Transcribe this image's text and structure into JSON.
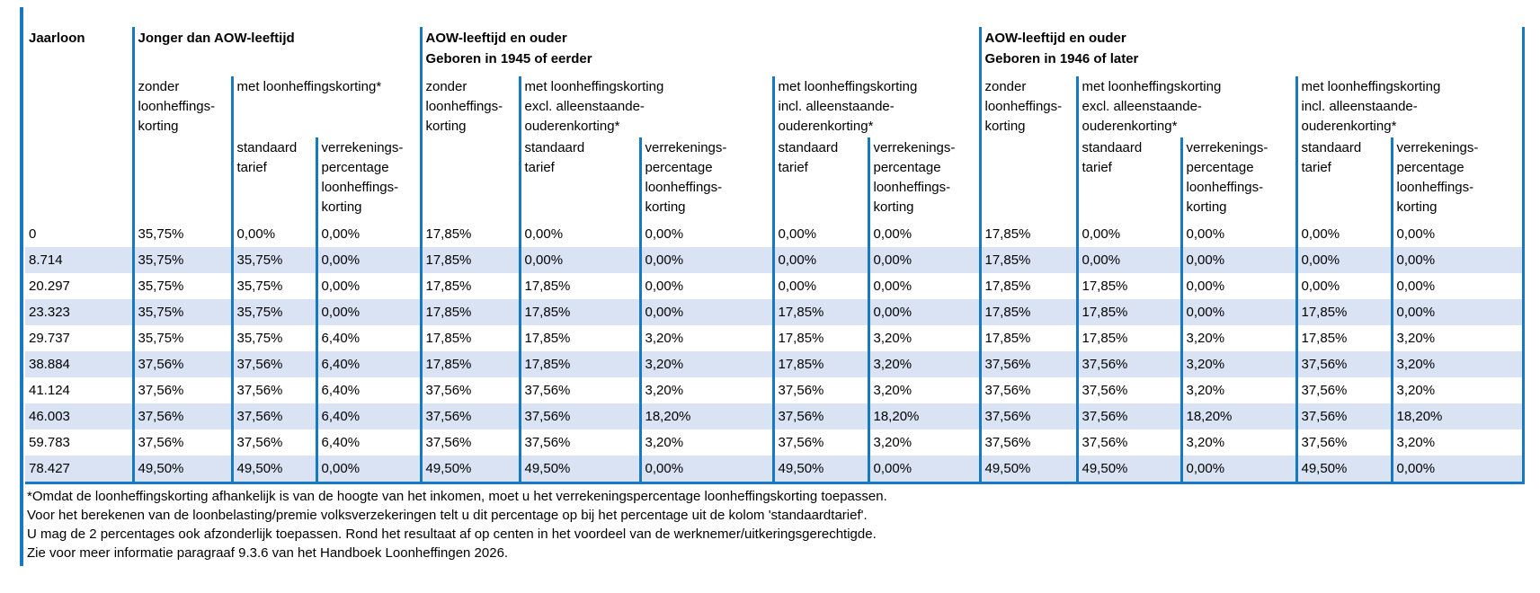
{
  "colors": {
    "border_blue": "#1779c2",
    "row_shade": "#dae3f3",
    "page_background": "#ffffff",
    "text": "#000000"
  },
  "table": {
    "col1_header": "Jaarloon",
    "groups": [
      {
        "title": "Jonger dan AOW-leeftijd"
      },
      {
        "title": "AOW-leeftijd en ouder\nGeboren in 1945 of eerder"
      },
      {
        "title": "AOW-leeftijd en ouder\nGeboren in 1946 of later"
      }
    ],
    "labels": {
      "zonder": "zonder\nloonheffings-\nkorting",
      "met": "met loonheffingskorting*",
      "met_excl": "met loonheffingskorting\nexcl. alleenstaande-\nouderenkorting*",
      "met_incl": "met loonheffingskorting\nincl. alleenstaande-\nouderenkorting*",
      "standaard": "standaard\ntarief",
      "verrekening": "verrekenings-\npercentage\nloonheffings-\nkorting"
    },
    "rows": [
      [
        "0",
        "35,75%",
        "0,00%",
        "0,00%",
        "17,85%",
        "0,00%",
        "0,00%",
        "0,00%",
        "0,00%",
        "17,85%",
        "0,00%",
        "0,00%",
        "0,00%",
        "0,00%"
      ],
      [
        "8.714",
        "35,75%",
        "35,75%",
        "0,00%",
        "17,85%",
        "0,00%",
        "0,00%",
        "0,00%",
        "0,00%",
        "17,85%",
        "0,00%",
        "0,00%",
        "0,00%",
        "0,00%"
      ],
      [
        "20.297",
        "35,75%",
        "35,75%",
        "0,00%",
        "17,85%",
        "17,85%",
        "0,00%",
        "0,00%",
        "0,00%",
        "17,85%",
        "17,85%",
        "0,00%",
        "0,00%",
        "0,00%"
      ],
      [
        "23.323",
        "35,75%",
        "35,75%",
        "0,00%",
        "17,85%",
        "17,85%",
        "0,00%",
        "17,85%",
        "0,00%",
        "17,85%",
        "17,85%",
        "0,00%",
        "17,85%",
        "0,00%"
      ],
      [
        "29.737",
        "35,75%",
        "35,75%",
        "6,40%",
        "17,85%",
        "17,85%",
        "3,20%",
        "17,85%",
        "3,20%",
        "17,85%",
        "17,85%",
        "3,20%",
        "17,85%",
        "3,20%"
      ],
      [
        "38.884",
        "37,56%",
        "37,56%",
        "6,40%",
        "17,85%",
        "17,85%",
        "3,20%",
        "17,85%",
        "3,20%",
        "37,56%",
        "37,56%",
        "3,20%",
        "37,56%",
        "3,20%"
      ],
      [
        "41.124",
        "37,56%",
        "37,56%",
        "6,40%",
        "37,56%",
        "37,56%",
        "3,20%",
        "37,56%",
        "3,20%",
        "37,56%",
        "37,56%",
        "3,20%",
        "37,56%",
        "3,20%"
      ],
      [
        "46.003",
        "37,56%",
        "37,56%",
        "6,40%",
        "37,56%",
        "37,56%",
        "18,20%",
        "37,56%",
        "18,20%",
        "37,56%",
        "37,56%",
        "18,20%",
        "37,56%",
        "18,20%"
      ],
      [
        "59.783",
        "37,56%",
        "37,56%",
        "6,40%",
        "37,56%",
        "37,56%",
        "3,20%",
        "37,56%",
        "3,20%",
        "37,56%",
        "37,56%",
        "3,20%",
        "37,56%",
        "3,20%"
      ],
      [
        "78.427",
        "49,50%",
        "49,50%",
        "0,00%",
        "49,50%",
        "49,50%",
        "0,00%",
        "49,50%",
        "0,00%",
        "49,50%",
        "49,50%",
        "0,00%",
        "49,50%",
        "0,00%"
      ]
    ]
  },
  "footnotes": {
    "lines": [
      "*Omdat de loonheffingskorting afhankelijk is van de hoogte van het inkomen, moet u het verrekeningspercentage loonheffingskorting toepassen.",
      "Voor het berekenen van de loonbelasting/premie volksverzekeringen telt u dit percentage op bij het percentage uit de kolom 'standaardtarief'.",
      "U mag de 2 percentages ook afzonderlijk toepassen. Rond het resultaat af op centen in het voordeel van de werknemer/uitkeringsgerechtigde.",
      "Zie voor meer informatie paragraaf 9.3.6 van het Handboek Loonheffingen 2026."
    ]
  }
}
